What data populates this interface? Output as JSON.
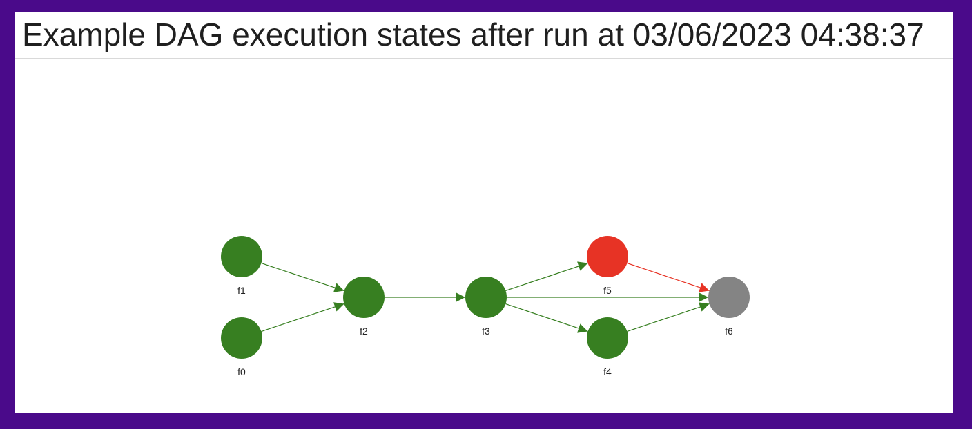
{
  "page": {
    "title": "Example DAG execution states after run at 03/06/2023 04:38:37"
  },
  "colors": {
    "background": "#4a0a8a",
    "success": "#377f21",
    "failed": "#e73325",
    "not_run": "#848484"
  },
  "dag": {
    "nodes": [
      {
        "id": "f1",
        "label": "f1",
        "state": "success"
      },
      {
        "id": "f0",
        "label": "f0",
        "state": "success"
      },
      {
        "id": "f2",
        "label": "f2",
        "state": "success"
      },
      {
        "id": "f3",
        "label": "f3",
        "state": "success"
      },
      {
        "id": "f5",
        "label": "f5",
        "state": "failed"
      },
      {
        "id": "f4",
        "label": "f4",
        "state": "success"
      },
      {
        "id": "f6",
        "label": "f6",
        "state": "not_run"
      }
    ],
    "edges": [
      {
        "from": "f1",
        "to": "f2",
        "state": "success"
      },
      {
        "from": "f0",
        "to": "f2",
        "state": "success"
      },
      {
        "from": "f2",
        "to": "f3",
        "state": "success"
      },
      {
        "from": "f3",
        "to": "f5",
        "state": "success"
      },
      {
        "from": "f3",
        "to": "f6",
        "state": "success"
      },
      {
        "from": "f3",
        "to": "f4",
        "state": "success"
      },
      {
        "from": "f5",
        "to": "f6",
        "state": "failed"
      },
      {
        "from": "f4",
        "to": "f6",
        "state": "success"
      }
    ]
  }
}
